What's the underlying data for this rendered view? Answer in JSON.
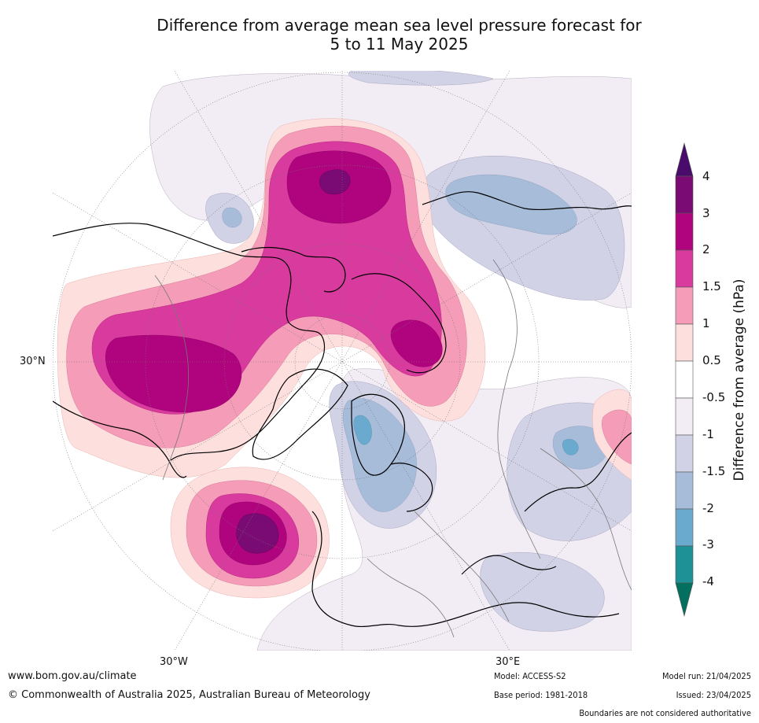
{
  "title": {
    "line1": "Difference from average mean sea level pressure forecast for",
    "line2": "5 to 11 May 2025"
  },
  "map": {
    "projection": "north-polar-stereographic",
    "lon_labels": [
      "30°W",
      "30°E"
    ],
    "lat_labels": [
      "30°N"
    ],
    "highs": [
      {
        "name": "north-pacific-high",
        "max_anomaly_hpa": 4
      },
      {
        "name": "arctic-high",
        "max_anomaly_hpa": 4
      },
      {
        "name": "north-america-high",
        "max_anomaly_hpa": 3
      },
      {
        "name": "siberia-high",
        "max_anomaly_hpa": 3
      },
      {
        "name": "north-atlantic-high",
        "max_anomaly_hpa": 4
      }
    ],
    "lows": [
      {
        "name": "scandinavia-low",
        "min_anomaly_hpa": -3
      },
      {
        "name": "central-asia-low",
        "min_anomaly_hpa": -2
      }
    ]
  },
  "colorbar": {
    "label": "Difference from average (hPa)",
    "ticks": [
      "4",
      "3",
      "2",
      "1.5",
      "1",
      "0.5",
      "-0.5",
      "-1",
      "-1.5",
      "-2",
      "-3",
      "-4"
    ],
    "colors": [
      "#4a0c6b",
      "#7a0a74",
      "#b0047e",
      "#d93a9e",
      "#f59cb8",
      "#fde0de",
      "#ffffff",
      "#f2ecf4",
      "#d2d2e6",
      "#a6bcd9",
      "#6aaacf",
      "#1e9196",
      "#03705f"
    ]
  },
  "footer": {
    "website": "www.bom.gov.au/climate",
    "copyright": "© Commonwealth of Australia 2025, Australian Bureau of Meteorology",
    "model": "Model: ACCESS-S2",
    "base_period": "Base period: 1981-2018",
    "model_run": "Model run: 21/04/2025",
    "issued": "Issued: 23/04/2025",
    "disclaimer": "Boundaries are not considered authoritative"
  }
}
